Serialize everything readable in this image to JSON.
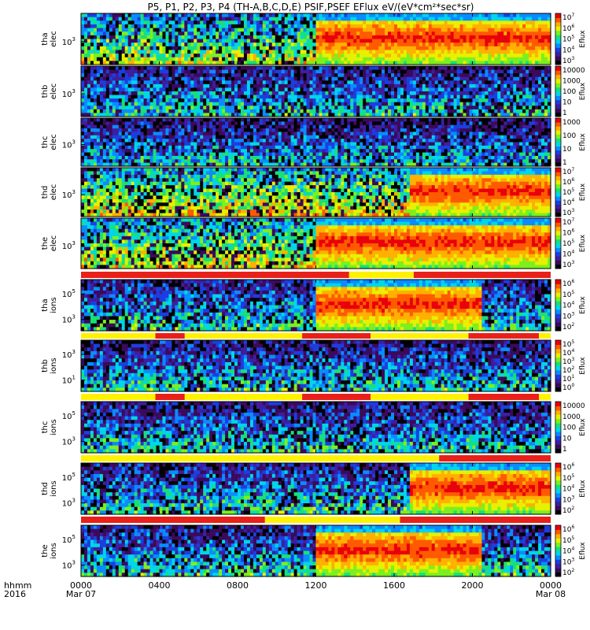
{
  "chart_data": {
    "type": "heatmap",
    "title": "P5, P1, P2, P3, P4 (TH-A,B,C,D,E) PSIF,PSEF EFlux eV/(eV*cm²*sec*sr)",
    "x_label_row1": "hhmm",
    "x_label_row2": "2016",
    "x_ticks": [
      {
        "label": "0000",
        "sub": "Mar 07",
        "hour": 0
      },
      {
        "label": "0400",
        "sub": "",
        "hour": 4
      },
      {
        "label": "0800",
        "sub": "",
        "hour": 8
      },
      {
        "label": "1200",
        "sub": "",
        "hour": 12
      },
      {
        "label": "1600",
        "sub": "",
        "hour": 16
      },
      {
        "label": "2000",
        "sub": "",
        "hour": 20
      },
      {
        "label": "0000",
        "sub": "Mar 08",
        "hour": 24
      }
    ],
    "panels": [
      {
        "id": "tha-elec",
        "label1": "tha",
        "label2": "elec",
        "yticks": [
          {
            "base": "10",
            "exp": "3"
          }
        ],
        "colorbar": {
          "label": "Eflux",
          "ticks": [
            [
              "10",
              "7"
            ],
            [
              "10",
              "6"
            ],
            [
              "10",
              "5"
            ],
            [
              "10",
              "4"
            ],
            [
              "10",
              "3"
            ]
          ]
        },
        "hot_start_hour": 12.0,
        "hot_end_hour": 24.0,
        "quiet_level": 0.35
      },
      {
        "id": "thb-elec",
        "label1": "thb",
        "label2": "elec",
        "yticks": [
          {
            "base": "10",
            "exp": "3"
          }
        ],
        "colorbar": {
          "label": "Eflux",
          "ticks": [
            [
              "10000",
              ""
            ],
            [
              "1000",
              ""
            ],
            [
              "100",
              ""
            ],
            [
              "10",
              ""
            ],
            [
              "1",
              ""
            ]
          ]
        },
        "hot_start_hour": null,
        "hot_end_hour": null,
        "quiet_level": 0.18
      },
      {
        "id": "thc-elec",
        "label1": "thc",
        "label2": "elec",
        "yticks": [
          {
            "base": "10",
            "exp": "3"
          }
        ],
        "colorbar": {
          "label": "Eflux",
          "ticks": [
            [
              "1000",
              ""
            ],
            [
              "100",
              ""
            ],
            [
              "10",
              ""
            ],
            [
              "1",
              ""
            ]
          ]
        },
        "hot_start_hour": null,
        "hot_end_hour": null,
        "quiet_level": 0.15
      },
      {
        "id": "thd-elec",
        "label1": "thd",
        "label2": "elec",
        "yticks": [
          {
            "base": "10",
            "exp": "3"
          }
        ],
        "colorbar": {
          "label": "Eflux",
          "ticks": [
            [
              "10",
              "7"
            ],
            [
              "10",
              "6"
            ],
            [
              "10",
              "5"
            ],
            [
              "10",
              "4"
            ],
            [
              "10",
              "3"
            ]
          ]
        },
        "hot_start_hour": 16.8,
        "hot_end_hour": 24.0,
        "quiet_level": 0.42
      },
      {
        "id": "the-elec",
        "label1": "the",
        "label2": "elec",
        "yticks": [
          {
            "base": "10",
            "exp": "3"
          }
        ],
        "colorbar": {
          "label": "Eflux",
          "ticks": [
            [
              "10",
              "7"
            ],
            [
              "10",
              "6"
            ],
            [
              "10",
              "5"
            ],
            [
              "10",
              "4"
            ],
            [
              "10",
              "3"
            ]
          ]
        },
        "hot_start_hour": 12.0,
        "hot_end_hour": 24.0,
        "quiet_level": 0.4
      },
      {
        "id": "tha-ions",
        "label1": "tha",
        "label2": "ions",
        "yticks": [
          {
            "base": "10",
            "exp": "5"
          },
          {
            "base": "10",
            "exp": "3"
          }
        ],
        "colorbar": {
          "label": "Eflux",
          "ticks": [
            [
              "10",
              "6"
            ],
            [
              "10",
              "5"
            ],
            [
              "10",
              "4"
            ],
            [
              "10",
              "3"
            ],
            [
              "10",
              "2"
            ]
          ]
        },
        "hot_start_hour": 12.0,
        "hot_end_hour": 20.5,
        "quiet_level": 0.2
      },
      {
        "id": "thb-ions",
        "label1": "thb",
        "label2": "ions",
        "yticks": [
          {
            "base": "10",
            "exp": "3"
          },
          {
            "base": "10",
            "exp": "1"
          }
        ],
        "colorbar": {
          "label": "Eflux",
          "ticks": [
            [
              "10",
              "5"
            ],
            [
              "10",
              "4"
            ],
            [
              "10",
              "3"
            ],
            [
              "10",
              "2"
            ],
            [
              "10",
              "1"
            ],
            [
              "10",
              "0"
            ]
          ]
        },
        "hot_start_hour": null,
        "hot_end_hour": null,
        "quiet_level": 0.18
      },
      {
        "id": "thc-ions",
        "label1": "thc",
        "label2": "ions",
        "yticks": [
          {
            "base": "10",
            "exp": "5"
          },
          {
            "base": "10",
            "exp": "3"
          }
        ],
        "colorbar": {
          "label": "Eflux",
          "ticks": [
            [
              "10000",
              ""
            ],
            [
              "1000",
              ""
            ],
            [
              "100",
              ""
            ],
            [
              "10",
              ""
            ],
            [
              "1",
              ""
            ]
          ]
        },
        "hot_start_hour": null,
        "hot_end_hour": null,
        "quiet_level": 0.18
      },
      {
        "id": "thd-ions",
        "label1": "thd",
        "label2": "ions",
        "yticks": [
          {
            "base": "10",
            "exp": "5"
          },
          {
            "base": "10",
            "exp": "3"
          }
        ],
        "colorbar": {
          "label": "Eflux",
          "ticks": [
            [
              "10",
              "6"
            ],
            [
              "10",
              "5"
            ],
            [
              "10",
              "4"
            ],
            [
              "10",
              "3"
            ],
            [
              "10",
              "2"
            ]
          ]
        },
        "hot_start_hour": 16.8,
        "hot_end_hour": 24.0,
        "quiet_level": 0.2
      },
      {
        "id": "the-ions",
        "label1": "the",
        "label2": "ions",
        "yticks": [
          {
            "base": "10",
            "exp": "5"
          },
          {
            "base": "10",
            "exp": "3"
          }
        ],
        "colorbar": {
          "label": "Eflux",
          "ticks": [
            [
              "10",
              "6"
            ],
            [
              "10",
              "5"
            ],
            [
              "10",
              "4"
            ],
            [
              "10",
              "3"
            ],
            [
              "10",
              "2"
            ]
          ]
        },
        "hot_start_hour": 12.0,
        "hot_end_hour": 20.5,
        "quiet_level": 0.2
      }
    ],
    "mode_bars": [
      {
        "after_panel": "the-elec",
        "segments": [
          {
            "start_hour": 0.0,
            "end_hour": 13.7,
            "color": "#e8201a"
          },
          {
            "start_hour": 13.7,
            "end_hour": 17.0,
            "color": "#fff200"
          },
          {
            "start_hour": 17.0,
            "end_hour": 24.0,
            "color": "#e8201a"
          }
        ]
      },
      {
        "after_panel": "tha-ions",
        "segments": [
          {
            "start_hour": 0.0,
            "end_hour": 3.8,
            "color": "#fff200"
          },
          {
            "start_hour": 3.8,
            "end_hour": 5.3,
            "color": "#e8201a"
          },
          {
            "start_hour": 5.3,
            "end_hour": 11.3,
            "color": "#fff200"
          },
          {
            "start_hour": 11.3,
            "end_hour": 14.8,
            "color": "#e8201a"
          },
          {
            "start_hour": 14.8,
            "end_hour": 19.8,
            "color": "#fff200"
          },
          {
            "start_hour": 19.8,
            "end_hour": 23.4,
            "color": "#e8201a"
          },
          {
            "start_hour": 23.4,
            "end_hour": 24.0,
            "color": "#fff200"
          }
        ]
      },
      {
        "after_panel": "thb-ions",
        "segments": [
          {
            "start_hour": 0.0,
            "end_hour": 3.8,
            "color": "#fff200"
          },
          {
            "start_hour": 3.8,
            "end_hour": 5.3,
            "color": "#e8201a"
          },
          {
            "start_hour": 5.3,
            "end_hour": 11.3,
            "color": "#fff200"
          },
          {
            "start_hour": 11.3,
            "end_hour": 14.8,
            "color": "#e8201a"
          },
          {
            "start_hour": 14.8,
            "end_hour": 19.8,
            "color": "#fff200"
          },
          {
            "start_hour": 19.8,
            "end_hour": 23.4,
            "color": "#e8201a"
          },
          {
            "start_hour": 23.4,
            "end_hour": 24.0,
            "color": "#fff200"
          }
        ]
      },
      {
        "after_panel": "thc-ions",
        "segments": [
          {
            "start_hour": 0.0,
            "end_hour": 18.3,
            "color": "#fff200"
          },
          {
            "start_hour": 18.3,
            "end_hour": 24.0,
            "color": "#e8201a"
          }
        ]
      },
      {
        "after_panel": "thd-ions",
        "segments": [
          {
            "start_hour": 0.0,
            "end_hour": 9.4,
            "color": "#e8201a"
          },
          {
            "start_hour": 9.4,
            "end_hour": 16.3,
            "color": "#fff200"
          },
          {
            "start_hour": 16.3,
            "end_hour": 24.0,
            "color": "#e8201a"
          }
        ]
      }
    ],
    "colormap": [
      "#000000",
      "#3b0a5c",
      "#3d1f9e",
      "#1a3fe0",
      "#0a8cff",
      "#00d6e8",
      "#17e07a",
      "#7cf01e",
      "#e8f000",
      "#ffb000",
      "#ff5a00",
      "#e8000a"
    ]
  }
}
